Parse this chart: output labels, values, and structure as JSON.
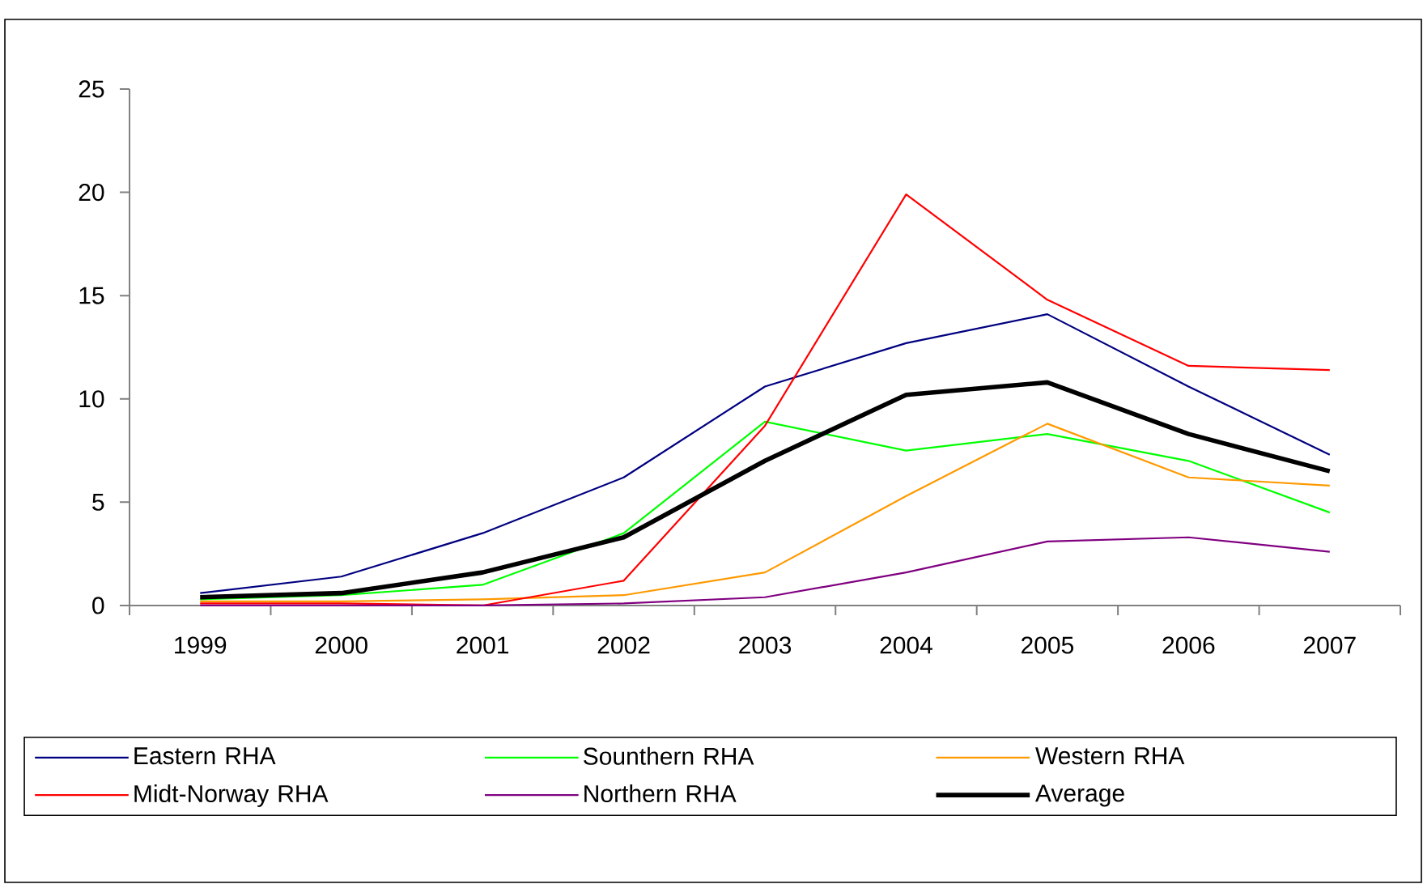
{
  "chart_data": {
    "type": "line",
    "categories": [
      "1999",
      "2000",
      "2001",
      "2002",
      "2003",
      "2004",
      "2005",
      "2006",
      "2007"
    ],
    "series": [
      {
        "name": "Eastern RHA",
        "color": "#000080",
        "values": [
          0.6,
          1.4,
          3.5,
          6.2,
          10.6,
          12.7,
          14.1,
          10.6,
          7.3
        ]
      },
      {
        "name": "Sounthern RHA",
        "color": "#00ff00",
        "values": [
          0.3,
          0.5,
          1.0,
          3.5,
          8.9,
          7.5,
          8.3,
          7.0,
          4.5
        ]
      },
      {
        "name": "Western RHA",
        "color": "#ff9900",
        "values": [
          0.2,
          0.2,
          0.3,
          0.5,
          1.6,
          5.3,
          8.8,
          6.2,
          5.8
        ]
      },
      {
        "name": "Midt-Norway RHA",
        "color": "#ff0000",
        "values": [
          0.1,
          0.1,
          0.0,
          1.2,
          8.7,
          19.9,
          14.8,
          11.6,
          11.4
        ]
      },
      {
        "name": "Northern RHA",
        "color": "#800080",
        "values": [
          0.0,
          0.0,
          0.0,
          0.1,
          0.4,
          1.6,
          3.1,
          3.3,
          2.6
        ]
      },
      {
        "name": "Average",
        "color": "#000000",
        "values": [
          0.4,
          0.6,
          1.6,
          3.3,
          7.0,
          10.2,
          10.8,
          8.3,
          6.5
        ]
      }
    ],
    "ylim": [
      0,
      25
    ],
    "yticks": [
      0,
      5,
      10,
      15,
      20,
      25
    ],
    "grid": false,
    "legend": "bottom",
    "marker": "none",
    "line_style": "solid"
  }
}
